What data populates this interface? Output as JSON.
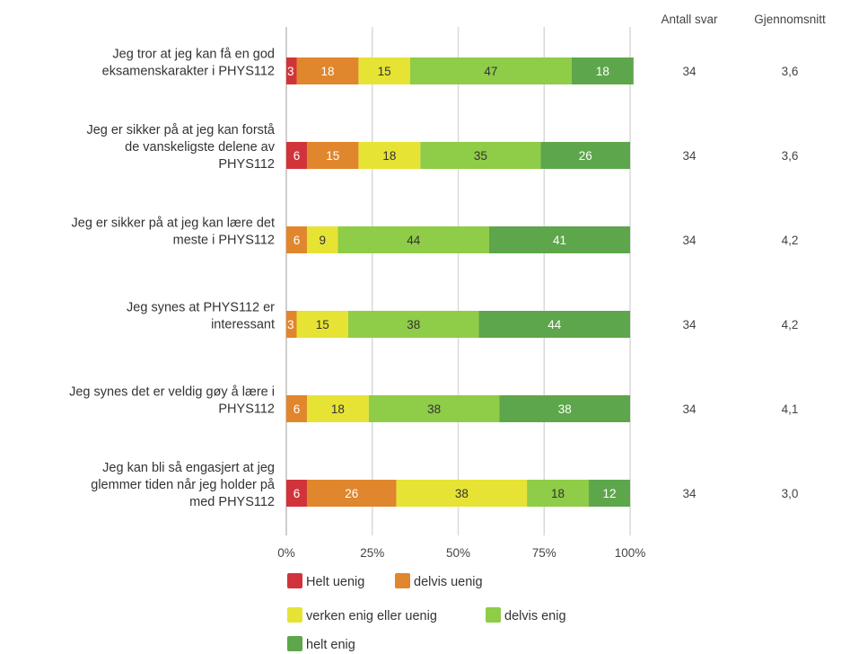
{
  "chart_data": {
    "type": "bar",
    "orientation": "horizontal",
    "stacked": true,
    "percent": true,
    "categories": [
      "Jeg tror at jeg kan få en god eksamenskarakter i PHYS112",
      "Jeg er sikker på at jeg kan forstå de vanskeligste delene av PHYS112",
      "Jeg er sikker på at jeg kan lære det meste i PHYS112",
      "Jeg synes at PHYS112 er interessant",
      "Jeg synes det er veldig gøy å lære i PHYS112",
      "Jeg kan bli så engasjert at jeg glemmer tiden når jeg holder på med PHYS112"
    ],
    "category_lines": [
      [
        "Jeg tror at jeg kan få en god",
        "eksamenskarakter i PHYS112"
      ],
      [
        "Jeg er sikker på at jeg kan forstå",
        "de vanskeligste delene av",
        "PHYS112"
      ],
      [
        "Jeg er sikker på at jeg kan lære det",
        "meste i PHYS112"
      ],
      [
        "Jeg synes at PHYS112 er",
        "interessant"
      ],
      [
        "Jeg synes det er veldig gøy å lære i",
        "PHYS112"
      ],
      [
        "Jeg kan bli så engasjert at jeg",
        "glemmer tiden når jeg holder på",
        "med PHYS112"
      ]
    ],
    "series": [
      {
        "name": "Helt uenig",
        "color": "#d0343a",
        "label_color": "#ffffff",
        "values": [
          3,
          6,
          0,
          0,
          0,
          6
        ]
      },
      {
        "name": "delvis uenig",
        "color": "#e0862d",
        "label_color": "#ffffff",
        "values": [
          18,
          15,
          6,
          3,
          6,
          26
        ]
      },
      {
        "name": "verken enig eller uenig",
        "color": "#e6e335",
        "label_color": "#333333",
        "values": [
          15,
          18,
          9,
          15,
          18,
          38
        ]
      },
      {
        "name": "delvis enig",
        "color": "#8fcc47",
        "label_color": "#333333",
        "values": [
          47,
          35,
          44,
          38,
          38,
          18
        ]
      },
      {
        "name": "helt enig",
        "color": "#5ea64b",
        "label_color": "#ffffff",
        "values": [
          18,
          26,
          41,
          44,
          38,
          12
        ]
      }
    ],
    "x_ticks": [
      "0%",
      "25%",
      "50%",
      "75%",
      "100%"
    ],
    "xlim": [
      0,
      100
    ],
    "grid": true,
    "legend_position": "bottom",
    "extra_columns": {
      "headers": [
        "Antall svar",
        "Gjennomsnitt"
      ],
      "antall_svar": [
        "34",
        "34",
        "34",
        "34",
        "34",
        "34"
      ],
      "gjennomsnitt": [
        "3,6",
        "3,6",
        "4,2",
        "4,2",
        "4,1",
        "3,0"
      ]
    }
  }
}
